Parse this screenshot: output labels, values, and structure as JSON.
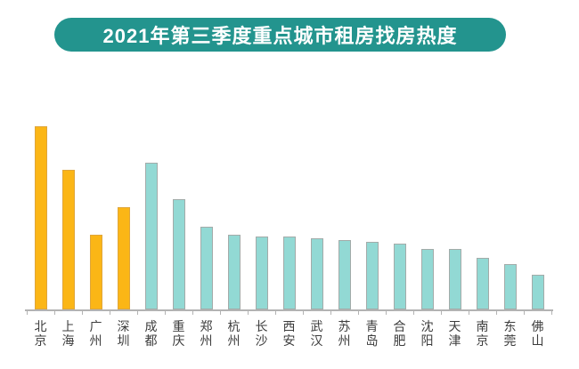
{
  "header": {
    "title": "2021年第三季度重点城市租房找房热度"
  },
  "colors": {
    "banner_bg": "#23948E",
    "banner_text": "#FFFFFF",
    "bar_tier1": "#FBB616",
    "bar_tier1_border": "#DFA63B",
    "bar_default": "#92D9D4",
    "bar_default_border": "#A3ABA9",
    "axis": "#B3B3B3",
    "label_text": "#3D3D3D"
  },
  "chart_data": {
    "type": "bar",
    "title": "2021年第三季度重点城市租房找房热度",
    "categories": [
      "北京",
      "上海",
      "广州",
      "深圳",
      "成都",
      "重庆",
      "郑州",
      "杭州",
      "长沙",
      "西安",
      "武汉",
      "苏州",
      "青岛",
      "合肥",
      "沈阳",
      "天津",
      "南京",
      "东莞",
      "佛山"
    ],
    "values": [
      100,
      76,
      41,
      56,
      80,
      60,
      45,
      41,
      40,
      40,
      39,
      38,
      37,
      36,
      33,
      33,
      28,
      25,
      19
    ],
    "highlighted_categories": [
      "北京",
      "上海",
      "广州",
      "深圳"
    ],
    "highlight_count": 4,
    "xlabel": "",
    "ylabel": "",
    "ylim": [
      0,
      100
    ],
    "y_axis_shown": false,
    "grid": false,
    "legend": "none",
    "note": "values are relative search-heat estimated from bar heights; no numeric axis shown"
  }
}
